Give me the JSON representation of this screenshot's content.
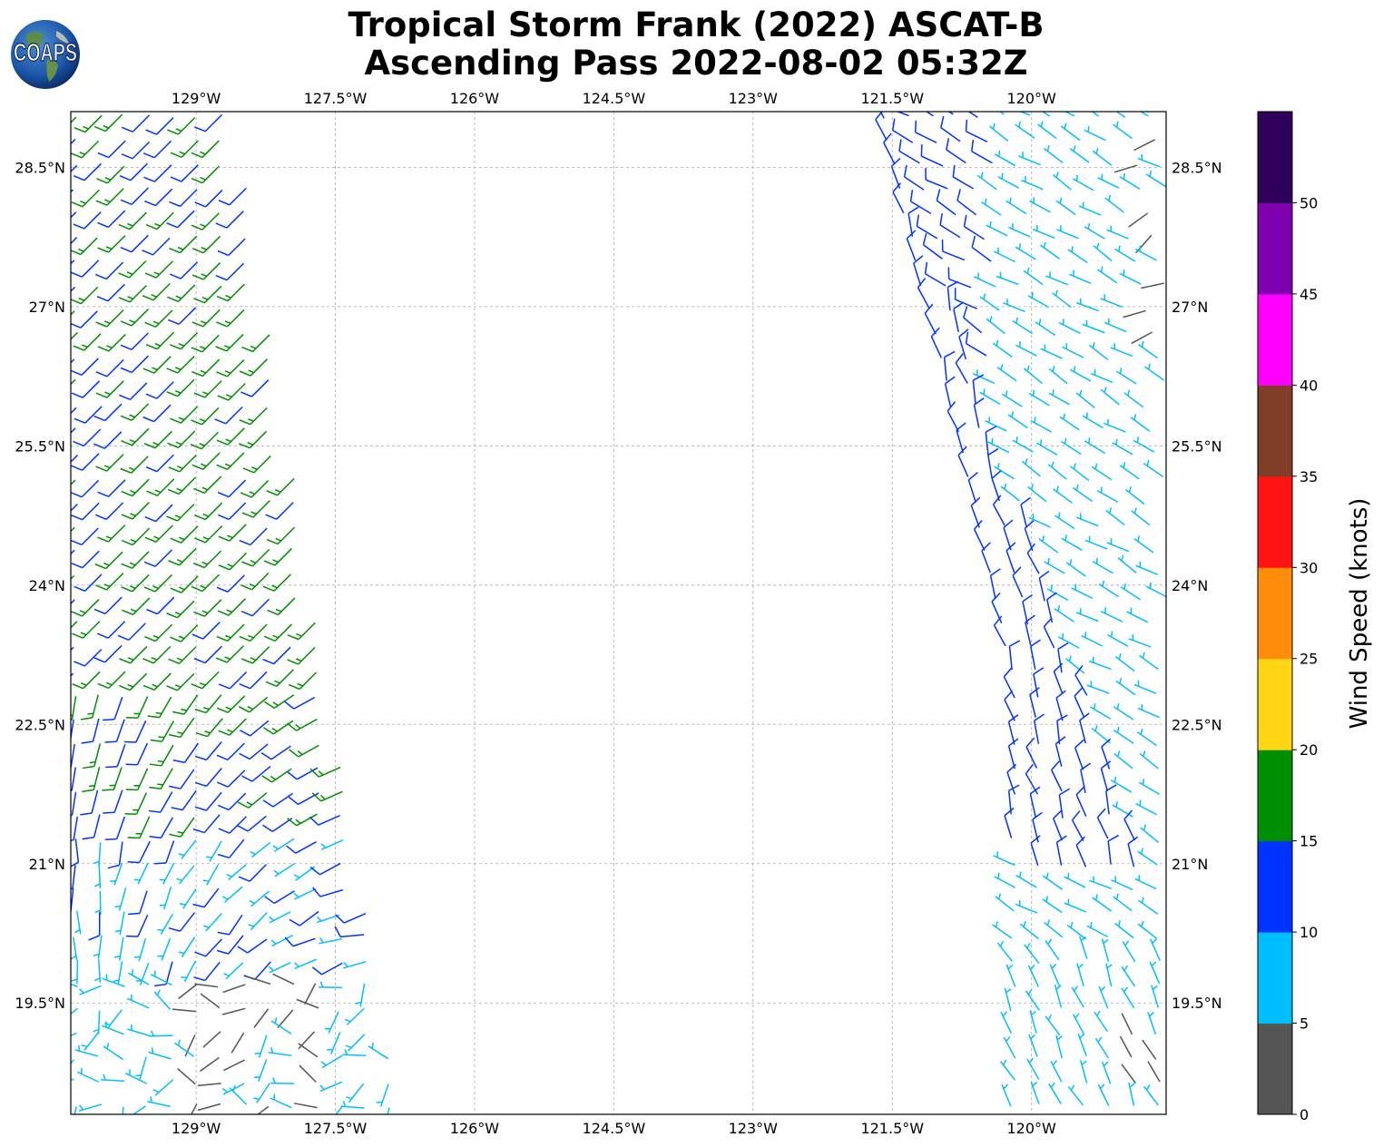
{
  "title": {
    "line1": "Tropical Storm Frank (2022) ASCAT-B",
    "line2": "Ascending Pass 2022-08-02 05:32Z"
  },
  "logo": {
    "text": "COAPS",
    "icon": "globe-icon"
  },
  "map": {
    "lon_range": [
      -130.35,
      -118.55
    ],
    "lat_range": [
      18.3,
      29.1
    ],
    "lon_ticks": [
      "129°W",
      "127.5°W",
      "126°W",
      "124.5°W",
      "123°W",
      "121.5°W",
      "120°W"
    ],
    "lon_tick_values": [
      -129,
      -127.5,
      -126,
      -124.5,
      -123,
      -121.5,
      -120
    ],
    "lat_ticks": [
      "28.5°N",
      "27°N",
      "25.5°N",
      "24°N",
      "22.5°N",
      "21°N",
      "19.5°N"
    ],
    "lat_tick_values": [
      28.5,
      27,
      25.5,
      24,
      22.5,
      21,
      19.5
    ],
    "gridlines": true,
    "swaths": [
      {
        "side": "west",
        "description_pattern": "left swath, dominated by SW flow turning to S near storm",
        "lon_edge_north": [
          -130.3,
          -128.6
        ],
        "lon_edge_south": [
          -130.3,
          -126.8
        ]
      },
      {
        "side": "east",
        "description_pattern": "right swath, W-NW flow",
        "lon_edge_north": [
          -121.6,
          -118.6
        ],
        "lon_edge_south": [
          -120.2,
          -118.6
        ]
      }
    ]
  },
  "colorbar": {
    "label": "Wind Speed (knots)",
    "tick_labels": [
      "0",
      "5",
      "10",
      "15",
      "20",
      "25",
      "30",
      "35",
      "40",
      "45",
      "50"
    ],
    "bins": [
      {
        "min": 0,
        "max": 5,
        "color": "#555555"
      },
      {
        "min": 5,
        "max": 10,
        "color": "#00bfff"
      },
      {
        "min": 10,
        "max": 15,
        "color": "#0033ff"
      },
      {
        "min": 15,
        "max": 20,
        "color": "#008f00"
      },
      {
        "min": 20,
        "max": 25,
        "color": "#ffd514"
      },
      {
        "min": 25,
        "max": 30,
        "color": "#ff8c0a"
      },
      {
        "min": 30,
        "max": 35,
        "color": "#ff1414"
      },
      {
        "min": 35,
        "max": 40,
        "color": "#803d27"
      },
      {
        "min": 40,
        "max": 45,
        "color": "#ff00ff"
      },
      {
        "min": 45,
        "max": 50,
        "color": "#8000b0"
      },
      {
        "min": 50,
        "max": 55,
        "color": "#2e0059"
      }
    ]
  }
}
